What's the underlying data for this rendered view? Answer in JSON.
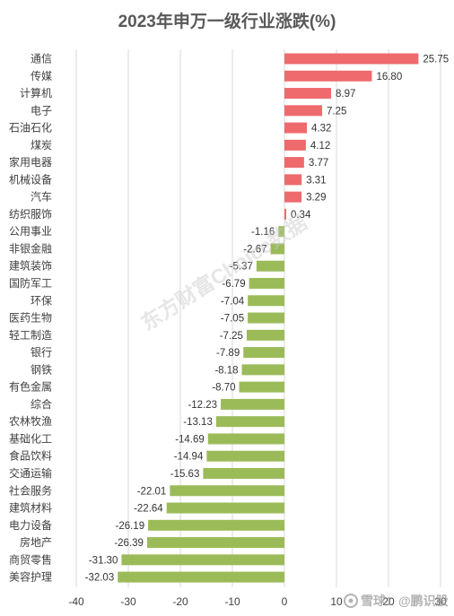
{
  "chart_data": {
    "type": "bar",
    "orientation": "horizontal",
    "title": "2023年申万一级行业涨跌(%)",
    "categories": [
      "通信",
      "传媒",
      "计算机",
      "电子",
      "石油石化",
      "煤炭",
      "家用电器",
      "机械设备",
      "汽车",
      "纺织服饰",
      "公用事业",
      "非银金融",
      "建筑装饰",
      "国防军工",
      "环保",
      "医药生物",
      "轻工制造",
      "银行",
      "钢铁",
      "有色金属",
      "综合",
      "农林牧渔",
      "基础化工",
      "食品饮料",
      "交通运输",
      "社会服务",
      "建筑材料",
      "电力设备",
      "房地产",
      "商贸零售",
      "美容护理"
    ],
    "values": [
      25.75,
      16.8,
      8.97,
      7.25,
      4.32,
      4.12,
      3.77,
      3.31,
      3.29,
      0.34,
      -1.16,
      -2.67,
      -5.37,
      -6.79,
      -7.04,
      -7.05,
      -7.25,
      -7.89,
      -8.18,
      -8.7,
      -12.23,
      -13.13,
      -14.69,
      -14.94,
      -15.63,
      -22.01,
      -22.64,
      -26.19,
      -26.39,
      -31.3,
      -32.03
    ],
    "value_decimals": 2,
    "xlim": [
      -40,
      30
    ],
    "xticks": [
      -40,
      -30,
      -20,
      -10,
      0,
      10,
      20,
      30
    ],
    "grid": "vertical",
    "legend": "none"
  },
  "colors": {
    "positive": "#ee6a6d",
    "negative": "#9bbb59",
    "grid": "#d9d9d9"
  },
  "watermarks": {
    "center": "东方财富Choice数据",
    "corner": "雪球：@鹏识股"
  }
}
